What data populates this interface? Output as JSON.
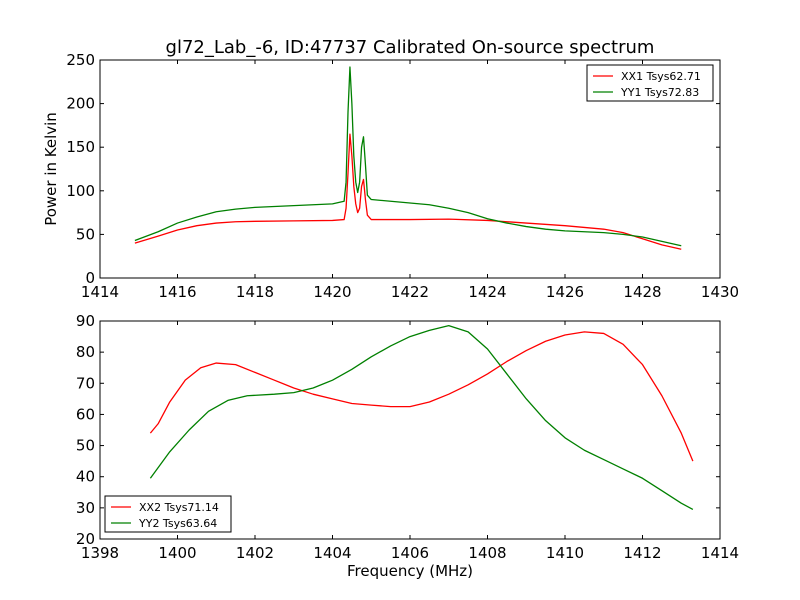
{
  "title": "gl72_Lab_-6, ID:47737 Calibrated On-source spectrum",
  "chart_data": [
    {
      "type": "line",
      "ylabel": "Power in Kelvin",
      "xlabel": "",
      "xlim": [
        1414,
        1430
      ],
      "ylim": [
        0,
        250
      ],
      "xticks": [
        1414,
        1416,
        1418,
        1420,
        1422,
        1424,
        1426,
        1428,
        1430
      ],
      "yticks": [
        0,
        50,
        100,
        150,
        200,
        250
      ],
      "legend_position": "top-right",
      "series": [
        {
          "name": "XX1 Tsys62.71",
          "color": "#ff0000",
          "points": [
            [
              1414.9,
              40
            ],
            [
              1415.5,
              48
            ],
            [
              1416,
              55
            ],
            [
              1416.5,
              60
            ],
            [
              1417,
              63
            ],
            [
              1417.5,
              64.5
            ],
            [
              1418,
              65
            ],
            [
              1419,
              65.5
            ],
            [
              1420,
              66
            ],
            [
              1420.3,
              67
            ],
            [
              1420.35,
              80
            ],
            [
              1420.4,
              120
            ],
            [
              1420.45,
              165
            ],
            [
              1420.5,
              140
            ],
            [
              1420.55,
              105
            ],
            [
              1420.6,
              85
            ],
            [
              1420.65,
              75
            ],
            [
              1420.7,
              80
            ],
            [
              1420.75,
              105
            ],
            [
              1420.8,
              113
            ],
            [
              1420.85,
              90
            ],
            [
              1420.9,
              72
            ],
            [
              1421,
              67
            ],
            [
              1422,
              67
            ],
            [
              1423,
              67.5
            ],
            [
              1424,
              66
            ],
            [
              1425,
              63
            ],
            [
              1426,
              60
            ],
            [
              1427,
              56
            ],
            [
              1427.5,
              52
            ],
            [
              1428,
              45
            ],
            [
              1428.5,
              38
            ],
            [
              1429,
              33
            ]
          ]
        },
        {
          "name": "YY1 Tsys72.83",
          "color": "#008000",
          "points": [
            [
              1414.9,
              43
            ],
            [
              1415.5,
              53
            ],
            [
              1416,
              63
            ],
            [
              1416.5,
              70
            ],
            [
              1417,
              76
            ],
            [
              1417.5,
              79
            ],
            [
              1418,
              81
            ],
            [
              1418.5,
              82
            ],
            [
              1419,
              83
            ],
            [
              1419.5,
              84
            ],
            [
              1420,
              85
            ],
            [
              1420.3,
              88
            ],
            [
              1420.35,
              110
            ],
            [
              1420.4,
              190
            ],
            [
              1420.45,
              242
            ],
            [
              1420.5,
              200
            ],
            [
              1420.55,
              140
            ],
            [
              1420.6,
              110
            ],
            [
              1420.65,
              98
            ],
            [
              1420.7,
              110
            ],
            [
              1420.75,
              150
            ],
            [
              1420.8,
              162
            ],
            [
              1420.85,
              130
            ],
            [
              1420.9,
              95
            ],
            [
              1421,
              90
            ],
            [
              1421.5,
              88
            ],
            [
              1422,
              86
            ],
            [
              1422.5,
              84
            ],
            [
              1423,
              80
            ],
            [
              1423.5,
              75
            ],
            [
              1424,
              68
            ],
            [
              1424.5,
              63
            ],
            [
              1425,
              59
            ],
            [
              1425.5,
              56
            ],
            [
              1426,
              54
            ],
            [
              1426.5,
              53
            ],
            [
              1427,
              52
            ],
            [
              1427.5,
              50
            ],
            [
              1428,
              47
            ],
            [
              1428.5,
              42
            ],
            [
              1429,
              37
            ]
          ]
        }
      ]
    },
    {
      "type": "line",
      "xlabel": "Frequency (MHz)",
      "ylabel": "",
      "xlim": [
        1398,
        1414
      ],
      "ylim": [
        20,
        90
      ],
      "xticks": [
        1398,
        1400,
        1402,
        1404,
        1406,
        1408,
        1410,
        1412,
        1414
      ],
      "yticks": [
        20,
        30,
        40,
        50,
        60,
        70,
        80,
        90
      ],
      "legend_position": "bottom-left",
      "series": [
        {
          "name": "XX2 Tsys71.14",
          "color": "#ff0000",
          "points": [
            [
              1399.3,
              54
            ],
            [
              1399.5,
              57
            ],
            [
              1399.8,
              64
            ],
            [
              1400.2,
              71
            ],
            [
              1400.6,
              75
            ],
            [
              1401,
              76.5
            ],
            [
              1401.5,
              76
            ],
            [
              1402,
              73.5
            ],
            [
              1402.5,
              71
            ],
            [
              1403,
              68.5
            ],
            [
              1403.5,
              66.5
            ],
            [
              1404,
              65
            ],
            [
              1404.5,
              63.5
            ],
            [
              1405,
              63
            ],
            [
              1405.5,
              62.5
            ],
            [
              1406,
              62.5
            ],
            [
              1406.5,
              64
            ],
            [
              1407,
              66.5
            ],
            [
              1407.5,
              69.5
            ],
            [
              1408,
              73
            ],
            [
              1408.5,
              77
            ],
            [
              1409,
              80.5
            ],
            [
              1409.5,
              83.5
            ],
            [
              1410,
              85.5
            ],
            [
              1410.5,
              86.5
            ],
            [
              1411,
              86
            ],
            [
              1411.5,
              82.5
            ],
            [
              1412,
              76
            ],
            [
              1412.5,
              66
            ],
            [
              1413,
              54
            ],
            [
              1413.3,
              45
            ]
          ]
        },
        {
          "name": "YY2 Tsys63.64",
          "color": "#008000",
          "points": [
            [
              1399.3,
              39.5
            ],
            [
              1399.8,
              48
            ],
            [
              1400.3,
              55
            ],
            [
              1400.8,
              61
            ],
            [
              1401.3,
              64.5
            ],
            [
              1401.8,
              66
            ],
            [
              1402.5,
              66.5
            ],
            [
              1403,
              67
            ],
            [
              1403.5,
              68.5
            ],
            [
              1404,
              71
            ],
            [
              1404.5,
              74.5
            ],
            [
              1405,
              78.5
            ],
            [
              1405.5,
              82
            ],
            [
              1406,
              85
            ],
            [
              1406.5,
              87
            ],
            [
              1407,
              88.5
            ],
            [
              1407.5,
              86.5
            ],
            [
              1408,
              81
            ],
            [
              1408.5,
              73
            ],
            [
              1409,
              65
            ],
            [
              1409.5,
              58
            ],
            [
              1410,
              52.5
            ],
            [
              1410.5,
              48.5
            ],
            [
              1411,
              45.5
            ],
            [
              1411.5,
              42.5
            ],
            [
              1412,
              39.5
            ],
            [
              1412.5,
              35.5
            ],
            [
              1413,
              31.5
            ],
            [
              1413.3,
              29.5
            ]
          ]
        }
      ]
    }
  ]
}
